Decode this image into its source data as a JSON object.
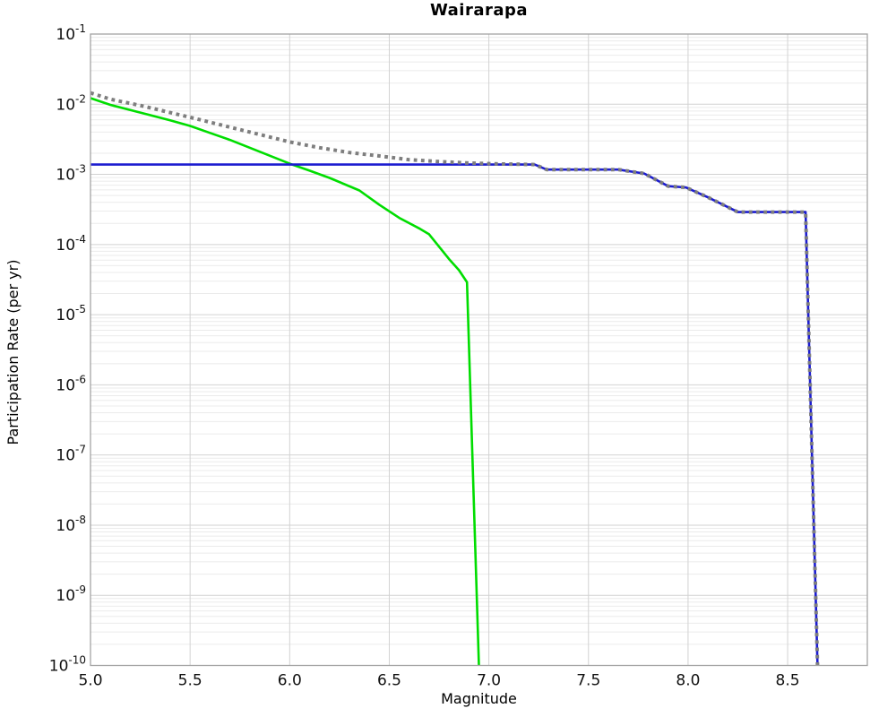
{
  "chart_data": {
    "type": "line",
    "title": "Wairarapa",
    "xlabel": "Magnitude",
    "ylabel": "Participation Rate (per yr)",
    "xlim": [
      5.0,
      8.9
    ],
    "ylog_range": [
      -10,
      -1
    ],
    "x_ticks": [
      5.0,
      5.5,
      6.0,
      6.5,
      7.0,
      7.5,
      8.0,
      8.5
    ],
    "y_tick_exponents": [
      -1,
      -2,
      -3,
      -4,
      -5,
      -6,
      -7,
      -8,
      -9,
      -10
    ],
    "grid": {
      "major": true,
      "minor_log": true,
      "vertical": true
    },
    "legend": "none",
    "colors": {
      "green_line": "#00dd00",
      "blue_line": "#1c1cd0",
      "gray_dotted": "#7e7e7e"
    },
    "series": [
      {
        "name": "series-green-solid",
        "color": "#00dd00",
        "style": "solid",
        "width": 2.6,
        "points": [
          [
            5.0,
            0.0122
          ],
          [
            5.1,
            0.0098
          ],
          [
            5.25,
            0.0076
          ],
          [
            5.4,
            0.0059
          ],
          [
            5.5,
            0.0049
          ],
          [
            5.6,
            0.0039
          ],
          [
            5.7,
            0.0031
          ],
          [
            5.85,
            0.0021
          ],
          [
            6.0,
            0.00142
          ],
          [
            6.1,
            0.00113
          ],
          [
            6.2,
            0.00089
          ],
          [
            6.35,
            0.00059
          ],
          [
            6.45,
            0.00037
          ],
          [
            6.55,
            0.00024
          ],
          [
            6.65,
            0.00017
          ],
          [
            6.7,
            0.00014
          ],
          [
            6.8,
            6.2e-05
          ],
          [
            6.85,
            4.3e-05
          ],
          [
            6.89,
            2.9e-05
          ],
          [
            6.95,
            1e-10
          ]
        ]
      },
      {
        "name": "series-blue-solid",
        "color": "#1c1cd0",
        "style": "solid",
        "width": 2.6,
        "points": [
          [
            5.0,
            0.00138
          ],
          [
            7.23,
            0.00138
          ],
          [
            7.29,
            0.00117
          ],
          [
            7.65,
            0.00117
          ],
          [
            7.78,
            0.00103
          ],
          [
            7.9,
            0.00068
          ],
          [
            7.99,
            0.00065
          ],
          [
            8.1,
            0.00047
          ],
          [
            8.25,
            0.00029
          ],
          [
            8.59,
            0.00029
          ],
          [
            8.65,
            1e-10
          ]
        ]
      },
      {
        "name": "series-gray-dotted",
        "color": "#7e7e7e",
        "style": "dotted",
        "width": 4,
        "points": [
          [
            5.0,
            0.0145
          ],
          [
            5.1,
            0.0118
          ],
          [
            5.25,
            0.0096
          ],
          [
            5.4,
            0.0076
          ],
          [
            5.55,
            0.006
          ],
          [
            5.7,
            0.0047
          ],
          [
            5.85,
            0.0037
          ],
          [
            6.0,
            0.0029
          ],
          [
            6.15,
            0.0024
          ],
          [
            6.3,
            0.00205
          ],
          [
            6.45,
            0.00183
          ],
          [
            6.6,
            0.00162
          ],
          [
            6.75,
            0.00152
          ],
          [
            6.9,
            0.00145
          ],
          [
            7.05,
            0.00141
          ],
          [
            7.23,
            0.00138
          ],
          [
            7.29,
            0.00117
          ],
          [
            7.65,
            0.00117
          ],
          [
            7.78,
            0.00103
          ],
          [
            7.9,
            0.00068
          ],
          [
            7.99,
            0.00065
          ],
          [
            8.1,
            0.00047
          ],
          [
            8.25,
            0.00029
          ],
          [
            8.59,
            0.00029
          ],
          [
            8.65,
            1e-10
          ]
        ]
      }
    ]
  }
}
